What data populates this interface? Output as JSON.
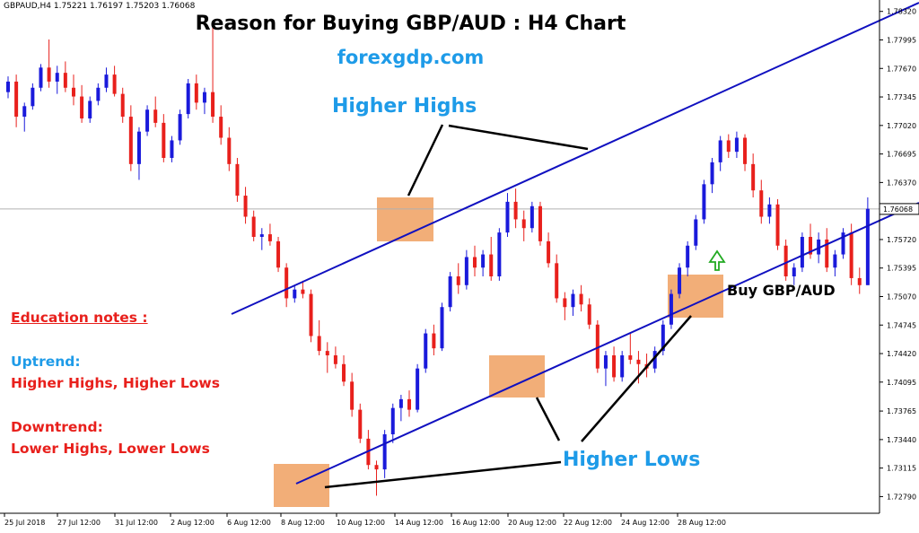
{
  "header": {
    "symbol_info": "GBPAUD,H4  1.75221 1.76197 1.75203 1.76068",
    "title": "Reason for Buying GBP/AUD : H4 Chart",
    "subtitle": "forexgdp.com"
  },
  "annotations": {
    "higher_highs": "Higher Highs",
    "higher_lows": "Higher Lows",
    "buy": "Buy GBP/AUD"
  },
  "notes": {
    "heading": "Education notes :",
    "uptrend": "Uptrend:",
    "uptrend_desc": "Higher Highs, Higher Lows",
    "downtrend": "Downtrend:",
    "downtrend_desc": "Lower Highs, Lower Lows"
  },
  "colors": {
    "bull": "#1a1adb",
    "bear": "#e8201c",
    "trendline": "#1010c0",
    "highlight": "#f0a060",
    "annotation_blue": "#1e9be8",
    "arrow": "#22aa22",
    "grid_current": "#b0b0b0"
  },
  "chart_data": {
    "type": "candlestick",
    "symbol": "GBPAUD",
    "timeframe": "H4",
    "last_price": "1.76068",
    "ylim": [
      1.726,
      1.7845
    ],
    "y_ticks": [
      "1.78320",
      "1.77995",
      "1.77670",
      "1.77345",
      "1.77020",
      "1.76695",
      "1.76370",
      "1.75720",
      "1.75395",
      "1.75070",
      "1.74745",
      "1.74420",
      "1.74095",
      "1.73765",
      "1.73440",
      "1.73115",
      "1.72790"
    ],
    "x_ticks": [
      "25 Jul 2018",
      "27 Jul 12:00",
      "31 Jul 12:00",
      "2 Aug 12:00",
      "6 Aug 12:00",
      "8 Aug 12:00",
      "10 Aug 12:00",
      "14 Aug 12:00",
      "16 Aug 12:00",
      "20 Aug 12:00",
      "22 Aug 12:00",
      "24 Aug 12:00",
      "28 Aug 12:00"
    ],
    "candles": [
      [
        1.774,
        1.7758,
        1.7733,
        1.7752
      ],
      [
        1.7752,
        1.776,
        1.77,
        1.7712
      ],
      [
        1.7712,
        1.7728,
        1.7695,
        1.7724
      ],
      [
        1.7724,
        1.775,
        1.772,
        1.7745
      ],
      [
        1.7745,
        1.7772,
        1.7741,
        1.7768
      ],
      [
        1.7768,
        1.78,
        1.7745,
        1.7752
      ],
      [
        1.7752,
        1.777,
        1.7738,
        1.7762
      ],
      [
        1.7762,
        1.7775,
        1.774,
        1.7745
      ],
      [
        1.7745,
        1.776,
        1.7725,
        1.7735
      ],
      [
        1.7735,
        1.7748,
        1.7705,
        1.771
      ],
      [
        1.771,
        1.7735,
        1.7705,
        1.773
      ],
      [
        1.773,
        1.775,
        1.7725,
        1.7745
      ],
      [
        1.7745,
        1.7768,
        1.774,
        1.776
      ],
      [
        1.776,
        1.777,
        1.7735,
        1.7738
      ],
      [
        1.7738,
        1.7745,
        1.7705,
        1.7712
      ],
      [
        1.7712,
        1.7725,
        1.765,
        1.7658
      ],
      [
        1.7658,
        1.77,
        1.764,
        1.7695
      ],
      [
        1.7695,
        1.7725,
        1.769,
        1.772
      ],
      [
        1.772,
        1.7735,
        1.77,
        1.7705
      ],
      [
        1.7705,
        1.7715,
        1.766,
        1.7665
      ],
      [
        1.7665,
        1.769,
        1.766,
        1.7685
      ],
      [
        1.7685,
        1.772,
        1.768,
        1.7715
      ],
      [
        1.7715,
        1.7755,
        1.771,
        1.775
      ],
      [
        1.775,
        1.776,
        1.772,
        1.7728
      ],
      [
        1.7728,
        1.7745,
        1.7715,
        1.774
      ],
      [
        1.774,
        1.7815,
        1.7705,
        1.7712
      ],
      [
        1.7712,
        1.7725,
        1.768,
        1.7688
      ],
      [
        1.7688,
        1.77,
        1.765,
        1.7658
      ],
      [
        1.7658,
        1.7665,
        1.7615,
        1.7622
      ],
      [
        1.7622,
        1.7632,
        1.759,
        1.7598
      ],
      [
        1.7598,
        1.7605,
        1.757,
        1.7575
      ],
      [
        1.7575,
        1.7585,
        1.756,
        1.7578
      ],
      [
        1.7578,
        1.759,
        1.7565,
        1.757
      ],
      [
        1.757,
        1.7575,
        1.7535,
        1.754
      ],
      [
        1.754,
        1.7545,
        1.7495,
        1.7505
      ],
      [
        1.7505,
        1.752,
        1.75,
        1.7515
      ],
      [
        1.7515,
        1.7525,
        1.7505,
        1.751
      ],
      [
        1.751,
        1.7515,
        1.7455,
        1.7462
      ],
      [
        1.7462,
        1.748,
        1.744,
        1.7445
      ],
      [
        1.7445,
        1.7455,
        1.742,
        1.744
      ],
      [
        1.744,
        1.745,
        1.7425,
        1.743
      ],
      [
        1.743,
        1.744,
        1.7405,
        1.741
      ],
      [
        1.741,
        1.742,
        1.737,
        1.7378
      ],
      [
        1.7378,
        1.7385,
        1.734,
        1.7345
      ],
      [
        1.7345,
        1.7355,
        1.731,
        1.7315
      ],
      [
        1.7315,
        1.732,
        1.728,
        1.731
      ],
      [
        1.731,
        1.7355,
        1.73,
        1.735
      ],
      [
        1.735,
        1.7385,
        1.734,
        1.738
      ],
      [
        1.738,
        1.7395,
        1.7365,
        1.739
      ],
      [
        1.739,
        1.74,
        1.737,
        1.7378
      ],
      [
        1.7378,
        1.743,
        1.7375,
        1.7425
      ],
      [
        1.7425,
        1.747,
        1.742,
        1.7465
      ],
      [
        1.7465,
        1.7475,
        1.744,
        1.7448
      ],
      [
        1.7448,
        1.75,
        1.7445,
        1.7495
      ],
      [
        1.7495,
        1.7535,
        1.749,
        1.753
      ],
      [
        1.753,
        1.7545,
        1.751,
        1.752
      ],
      [
        1.752,
        1.756,
        1.7515,
        1.7552
      ],
      [
        1.7552,
        1.7565,
        1.753,
        1.754
      ],
      [
        1.754,
        1.756,
        1.753,
        1.7555
      ],
      [
        1.7555,
        1.7575,
        1.7525,
        1.753
      ],
      [
        1.753,
        1.7585,
        1.7525,
        1.758
      ],
      [
        1.758,
        1.7625,
        1.7575,
        1.7615
      ],
      [
        1.7615,
        1.763,
        1.7585,
        1.7595
      ],
      [
        1.7595,
        1.7605,
        1.757,
        1.7585
      ],
      [
        1.7585,
        1.7615,
        1.758,
        1.761
      ],
      [
        1.761,
        1.7615,
        1.7565,
        1.757
      ],
      [
        1.757,
        1.758,
        1.754,
        1.7545
      ],
      [
        1.7545,
        1.7555,
        1.75,
        1.7505
      ],
      [
        1.7505,
        1.7512,
        1.748,
        1.7495
      ],
      [
        1.7495,
        1.7515,
        1.7485,
        1.751
      ],
      [
        1.751,
        1.752,
        1.749,
        1.7498
      ],
      [
        1.7498,
        1.7505,
        1.747,
        1.7475
      ],
      [
        1.7475,
        1.748,
        1.742,
        1.7425
      ],
      [
        1.7425,
        1.7445,
        1.7405,
        1.744
      ],
      [
        1.744,
        1.745,
        1.741,
        1.7415
      ],
      [
        1.7415,
        1.7445,
        1.741,
        1.744
      ],
      [
        1.744,
        1.7465,
        1.743,
        1.7435
      ],
      [
        1.7435,
        1.7445,
        1.7408,
        1.743
      ],
      [
        1.743,
        1.7442,
        1.7415,
        1.7425
      ],
      [
        1.7425,
        1.745,
        1.742,
        1.7445
      ],
      [
        1.7445,
        1.748,
        1.744,
        1.7475
      ],
      [
        1.7475,
        1.7515,
        1.747,
        1.751
      ],
      [
        1.751,
        1.7545,
        1.7505,
        1.754
      ],
      [
        1.754,
        1.757,
        1.753,
        1.7565
      ],
      [
        1.7565,
        1.76,
        1.756,
        1.7595
      ],
      [
        1.7595,
        1.764,
        1.759,
        1.7635
      ],
      [
        1.7635,
        1.7665,
        1.7625,
        1.766
      ],
      [
        1.766,
        1.769,
        1.765,
        1.7685
      ],
      [
        1.7685,
        1.7692,
        1.7665,
        1.7672
      ],
      [
        1.7672,
        1.7695,
        1.7665,
        1.7688
      ],
      [
        1.7688,
        1.7692,
        1.765,
        1.7658
      ],
      [
        1.7658,
        1.767,
        1.762,
        1.7628
      ],
      [
        1.7628,
        1.764,
        1.759,
        1.7598
      ],
      [
        1.7598,
        1.762,
        1.759,
        1.7612
      ],
      [
        1.7612,
        1.7618,
        1.756,
        1.7565
      ],
      [
        1.7565,
        1.7572,
        1.7525,
        1.753
      ],
      [
        1.753,
        1.7545,
        1.752,
        1.754
      ],
      [
        1.754,
        1.758,
        1.7535,
        1.7575
      ],
      [
        1.7575,
        1.759,
        1.755,
        1.7555
      ],
      [
        1.7555,
        1.758,
        1.7545,
        1.7572
      ],
      [
        1.7572,
        1.7585,
        1.7535,
        1.754
      ],
      [
        1.754,
        1.756,
        1.753,
        1.7555
      ],
      [
        1.7555,
        1.7585,
        1.755,
        1.758
      ],
      [
        1.758,
        1.759,
        1.752,
        1.7528
      ],
      [
        1.7528,
        1.754,
        1.751,
        1.752
      ],
      [
        1.752,
        1.762,
        1.752,
        1.7607
      ]
    ],
    "trendlines": [
      {
        "name": "upper-channel",
        "x": [
          "6 Aug 12:00",
          "off-chart right"
        ],
        "y": [
          1.7502,
          1.7845
        ]
      },
      {
        "name": "lower-channel",
        "x": [
          "8 Aug 12:00",
          "off-chart right"
        ],
        "y": [
          1.731,
          1.763
        ]
      }
    ],
    "grid": false,
    "legend": "none"
  }
}
